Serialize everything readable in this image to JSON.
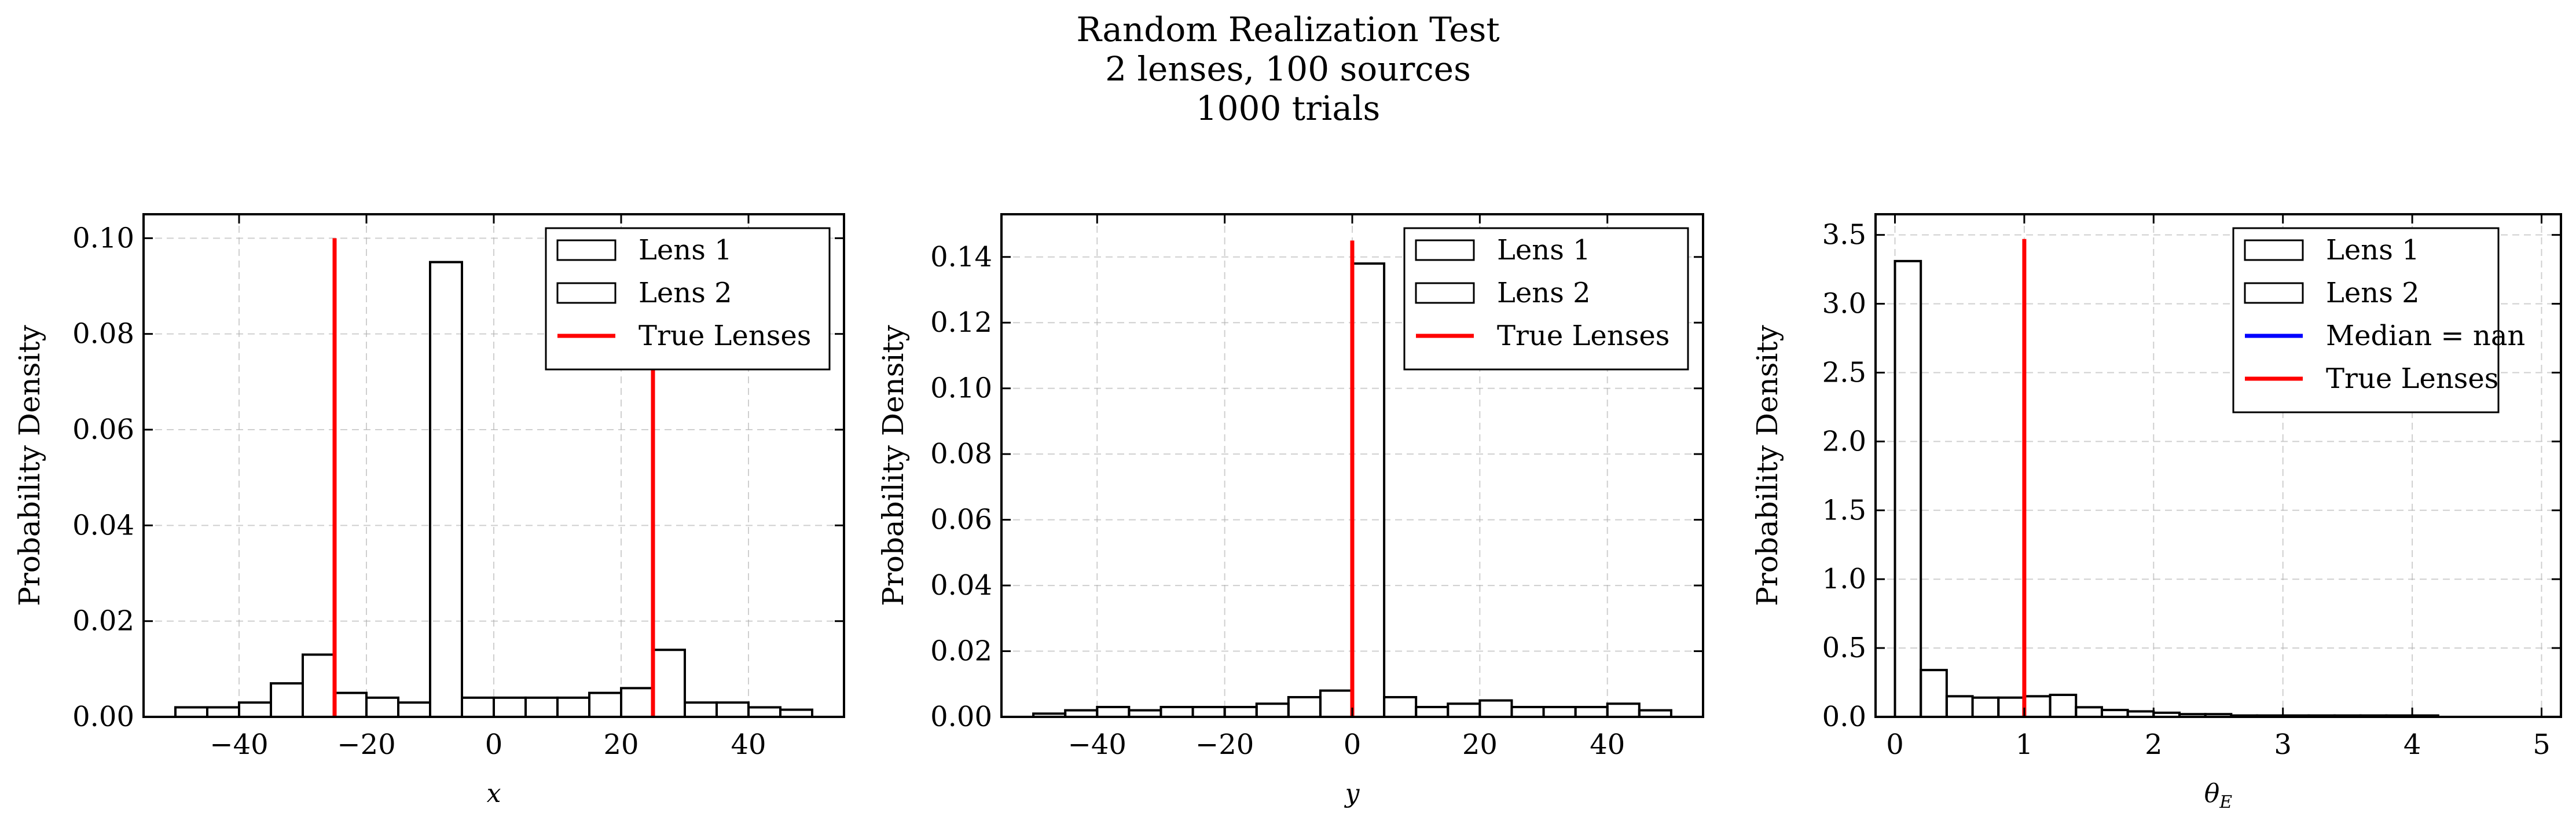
{
  "suptitle": {
    "line1": "Random Realization Test",
    "line2": "2 lenses, 100 sources",
    "line3": "1000 trials"
  },
  "colors": {
    "hist": "#000000",
    "true_lenses": "#ff0000",
    "median": "#0000ff",
    "grid": "#b0b0b0"
  },
  "chart_data": [
    {
      "type": "bar",
      "subtype": "histogram-step",
      "xlabel": "x",
      "ylabel": "Probability Density",
      "xlim": [
        -55,
        55
      ],
      "ylim": [
        0,
        0.105
      ],
      "xticks": [
        -40,
        -20,
        0,
        20,
        40
      ],
      "yticks": [
        0.0,
        0.02,
        0.04,
        0.06,
        0.08,
        0.1
      ],
      "xtick_labels": [
        "−40",
        "−20",
        "0",
        "20",
        "40"
      ],
      "ytick_labels": [
        "0.00",
        "0.02",
        "0.04",
        "0.06",
        "0.08",
        "0.10"
      ],
      "grid": true,
      "legend_position": "top-right",
      "series": [
        {
          "name": "Lens 1",
          "kind": "step",
          "bin_edges": [
            -50,
            -45,
            -40,
            -35,
            -30,
            -25,
            -20,
            -15,
            -10,
            -5,
            0,
            5,
            10,
            15,
            20,
            25,
            30,
            35,
            40,
            45,
            50
          ],
          "values": [
            0.002,
            0.002,
            0.003,
            0.007,
            0.013,
            0.005,
            0.004,
            0.003,
            0.095,
            0.004,
            0.004,
            0.004,
            0.004,
            0.005,
            0.006,
            0.014,
            0.003,
            0.003,
            0.002,
            0.0015
          ]
        },
        {
          "name": "Lens 2",
          "kind": "step"
        },
        {
          "name": "True Lenses",
          "kind": "vline",
          "x": [
            -25,
            25
          ],
          "ymax": 0.1
        }
      ]
    },
    {
      "type": "bar",
      "subtype": "histogram-step",
      "xlabel": "y",
      "ylabel": "Probability Density",
      "xlim": [
        -55,
        55
      ],
      "ylim": [
        0,
        0.153
      ],
      "xticks": [
        -40,
        -20,
        0,
        20,
        40
      ],
      "yticks": [
        0.0,
        0.02,
        0.04,
        0.06,
        0.08,
        0.1,
        0.12,
        0.14
      ],
      "xtick_labels": [
        "−40",
        "−20",
        "0",
        "20",
        "40"
      ],
      "ytick_labels": [
        "0.00",
        "0.02",
        "0.04",
        "0.06",
        "0.08",
        "0.10",
        "0.12",
        "0.14"
      ],
      "grid": true,
      "legend_position": "top-right",
      "series": [
        {
          "name": "Lens 1",
          "kind": "step",
          "bin_edges": [
            -50,
            -45,
            -40,
            -35,
            -30,
            -25,
            -20,
            -15,
            -10,
            -5,
            0,
            5,
            10,
            15,
            20,
            25,
            30,
            35,
            40,
            45,
            50
          ],
          "values": [
            0.001,
            0.002,
            0.003,
            0.002,
            0.003,
            0.003,
            0.003,
            0.004,
            0.006,
            0.008,
            0.138,
            0.006,
            0.003,
            0.004,
            0.005,
            0.003,
            0.003,
            0.003,
            0.004,
            0.002
          ]
        },
        {
          "name": "Lens 2",
          "kind": "step"
        },
        {
          "name": "True Lenses",
          "kind": "vline",
          "x": [
            0
          ],
          "ymax": 0.145
        }
      ]
    },
    {
      "type": "bar",
      "subtype": "histogram-step",
      "xlabel": "θE",
      "xlabel_main": "θ",
      "xlabel_sub": "E",
      "ylabel": "Probability Density",
      "xlim": [
        -0.15,
        5.15
      ],
      "ylim": [
        0,
        3.65
      ],
      "xticks": [
        0,
        1,
        2,
        3,
        4,
        5
      ],
      "yticks": [
        0.0,
        0.5,
        1.0,
        1.5,
        2.0,
        2.5,
        3.0,
        3.5
      ],
      "xtick_labels": [
        "0",
        "1",
        "2",
        "3",
        "4",
        "5"
      ],
      "ytick_labels": [
        "0.0",
        "0.5",
        "1.0",
        "1.5",
        "2.0",
        "2.5",
        "3.0",
        "3.5"
      ],
      "grid": true,
      "legend_position": "top-right",
      "series": [
        {
          "name": "Lens 1",
          "kind": "step",
          "bin_edges": [
            0,
            0.2,
            0.4,
            0.6,
            0.8,
            1.0,
            1.2,
            1.4,
            1.6,
            1.8,
            2.0,
            2.2,
            2.4,
            2.6,
            2.8,
            3.0,
            3.2,
            3.4,
            3.6,
            3.8,
            4.0,
            4.2,
            4.4,
            4.6,
            4.8,
            5.0
          ],
          "values": [
            3.31,
            0.34,
            0.15,
            0.14,
            0.14,
            0.15,
            0.16,
            0.07,
            0.05,
            0.04,
            0.03,
            0.02,
            0.02,
            0.01,
            0.01,
            0.01,
            0.01,
            0.01,
            0.01,
            0.01,
            0.01,
            0.0,
            0.0,
            0.0,
            0.0
          ]
        },
        {
          "name": "Lens 2",
          "kind": "step"
        },
        {
          "name": "Median = nan",
          "kind": "legend-line"
        },
        {
          "name": "True Lenses",
          "kind": "vline",
          "x": [
            1
          ],
          "ymax": 3.47
        }
      ]
    }
  ]
}
